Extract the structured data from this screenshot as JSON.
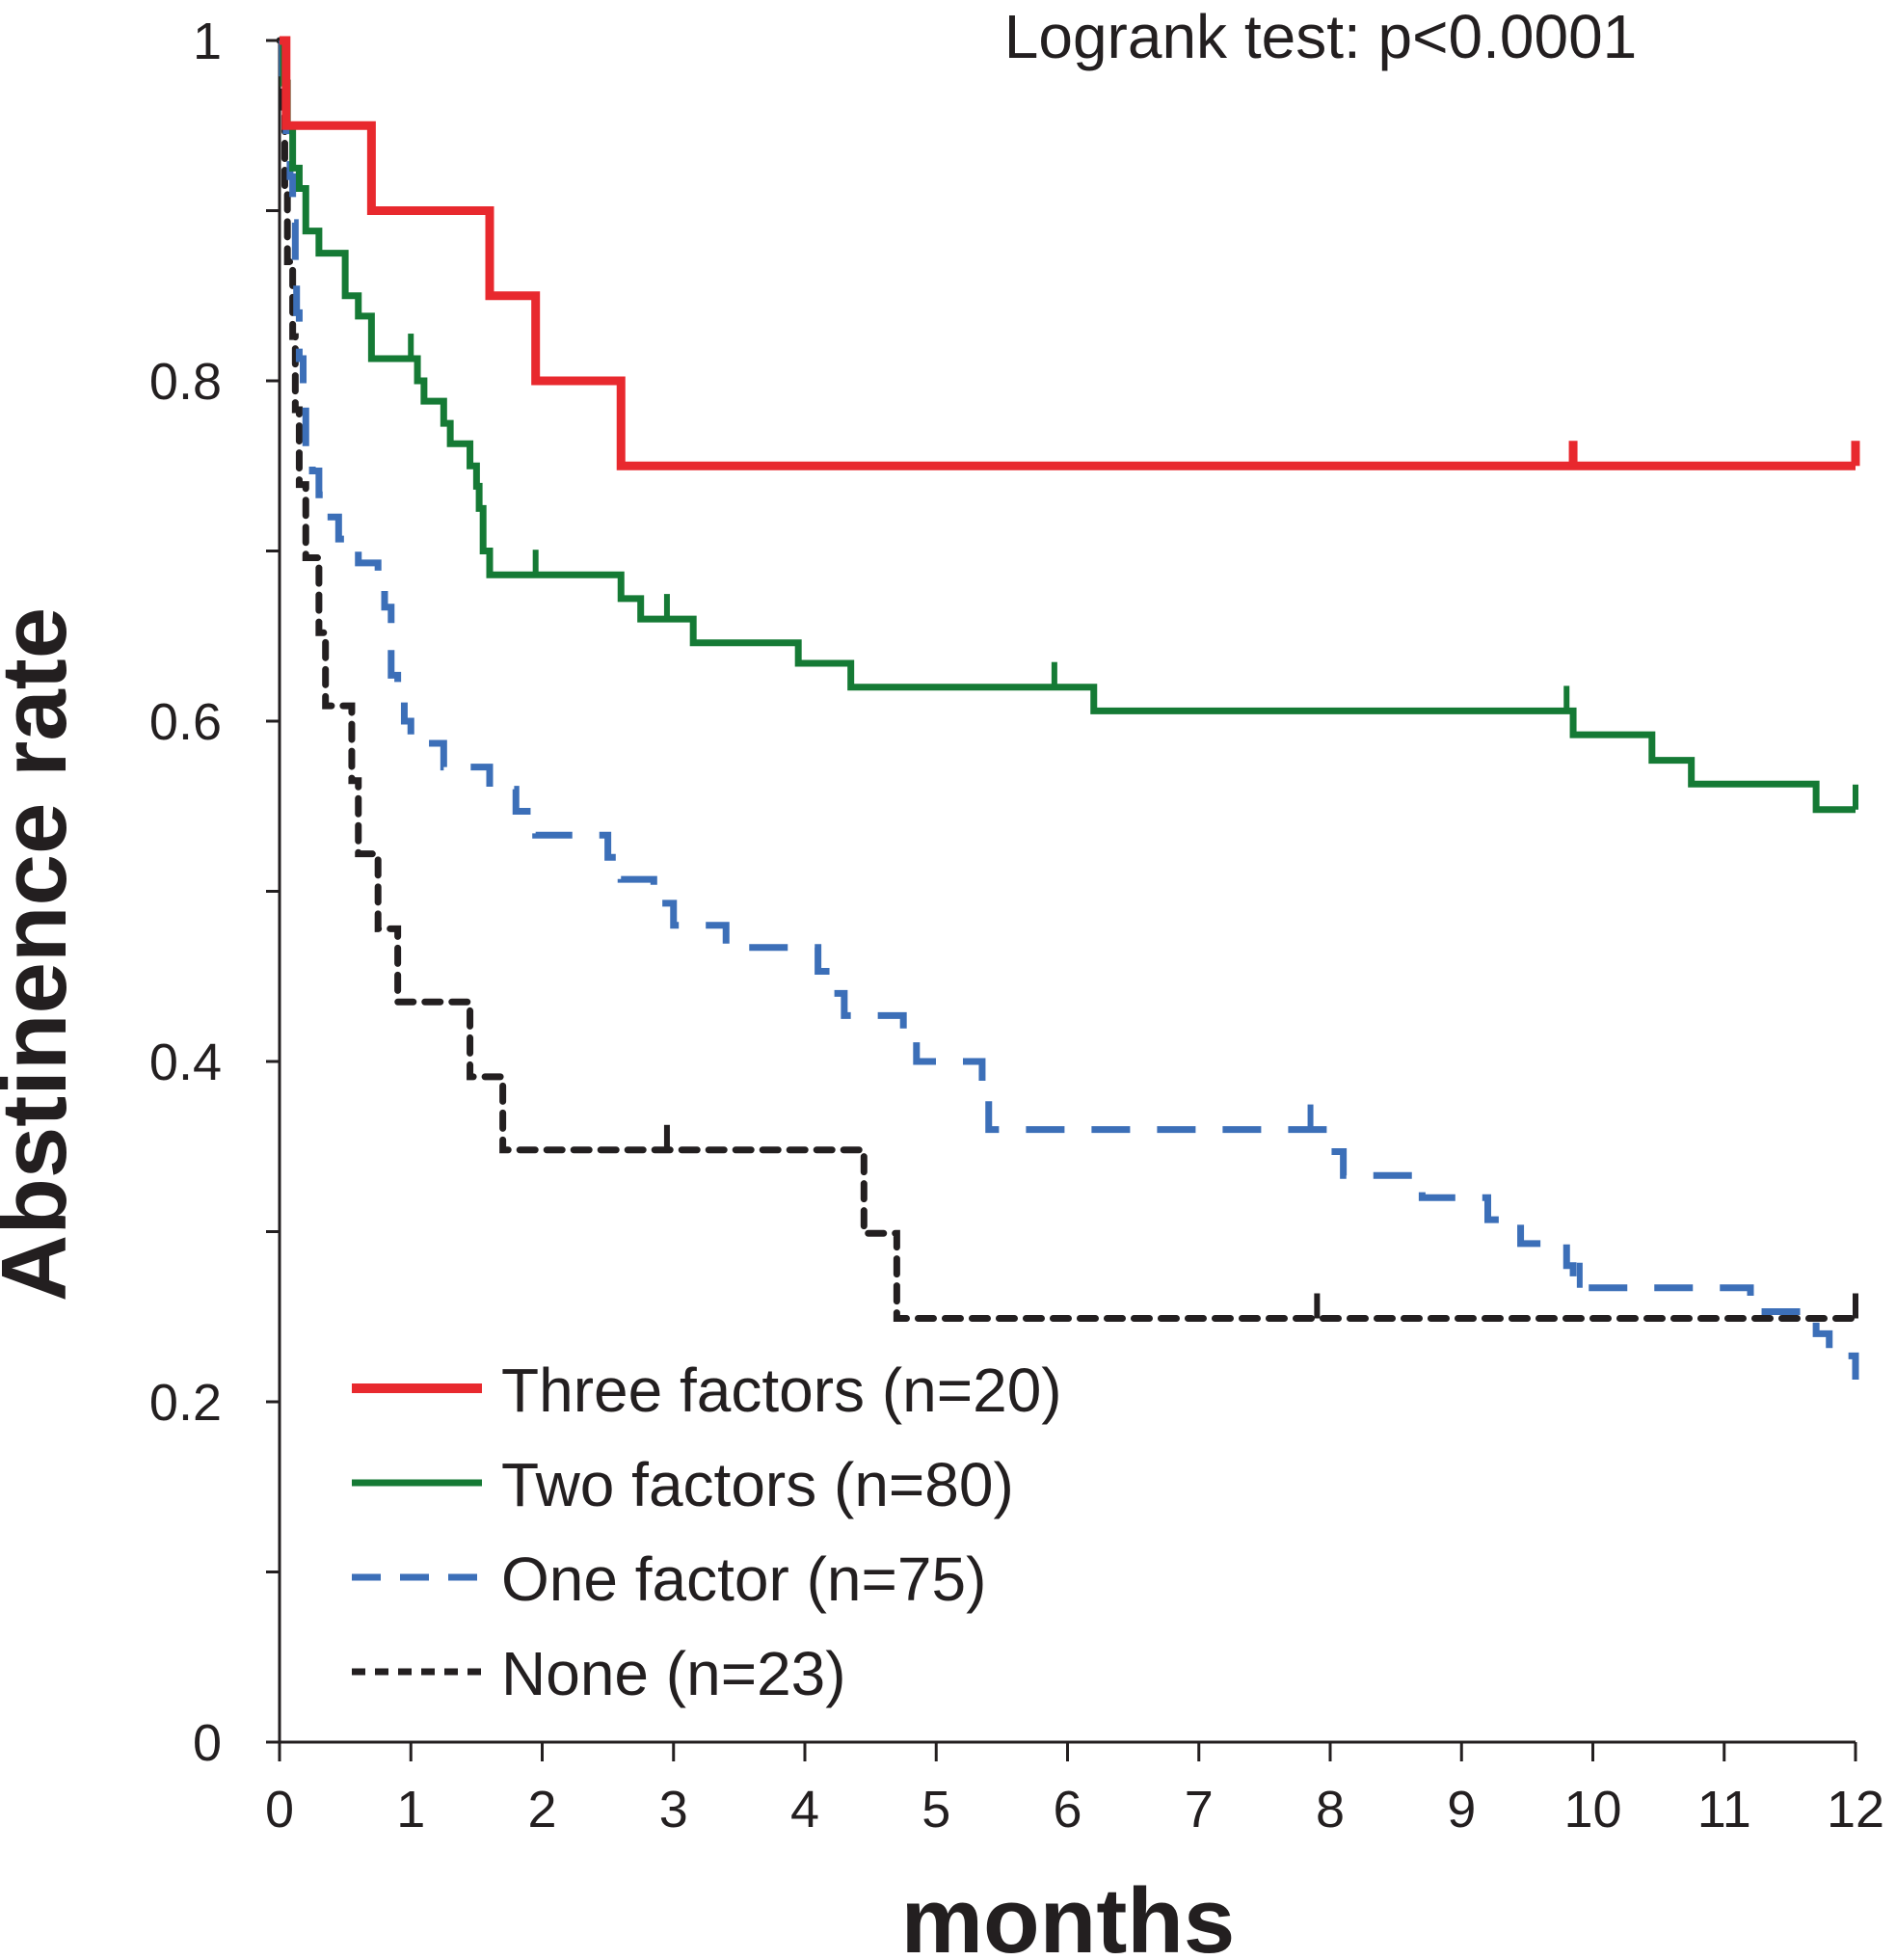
{
  "chart_data": {
    "type": "line",
    "subtype": "kaplan-meier step",
    "title": "",
    "annotation": "Logrank test:  p<0.0001",
    "xlabel": "months",
    "ylabel": "Abstinence rate",
    "xlim": [
      0,
      12
    ],
    "ylim": [
      0,
      1
    ],
    "x_ticks": [
      0,
      1,
      2,
      3,
      4,
      5,
      6,
      7,
      8,
      9,
      10,
      11,
      12
    ],
    "x_tick_labels": [
      "0",
      "1",
      "2",
      "3",
      "4",
      "5",
      "6",
      "7",
      "8",
      "9",
      "10",
      "11",
      "12"
    ],
    "y_ticks": [
      0,
      0.1,
      0.2,
      0.3,
      0.4,
      0.5,
      0.6,
      0.7,
      0.8,
      0.9,
      1.0
    ],
    "y_tick_labels": [
      "0",
      "",
      "0.2",
      "",
      "0.4",
      "",
      "0.6",
      "",
      "0.8",
      "",
      "1"
    ],
    "grid": false,
    "legend_position": "bottom-left",
    "series": [
      {
        "name": "Three factors (n=20)",
        "color": "#e8292e",
        "dash": "solid",
        "steps": [
          [
            0,
            1.0
          ],
          [
            0.05,
            0.95
          ],
          [
            0.7,
            0.9
          ],
          [
            1.6,
            0.85
          ],
          [
            1.95,
            0.8
          ],
          [
            2.6,
            0.75
          ],
          [
            12,
            0.75
          ]
        ],
        "censored": [
          [
            9.85,
            0.75
          ],
          [
            12,
            0.75
          ]
        ]
      },
      {
        "name": "Two factors (n=80)",
        "color": "#157a35",
        "dash": "solid",
        "steps": [
          [
            0,
            1.0
          ],
          [
            0.03,
            0.975
          ],
          [
            0.06,
            0.95
          ],
          [
            0.1,
            0.925
          ],
          [
            0.15,
            0.913
          ],
          [
            0.2,
            0.888
          ],
          [
            0.3,
            0.875
          ],
          [
            0.5,
            0.85
          ],
          [
            0.6,
            0.838
          ],
          [
            0.7,
            0.813
          ],
          [
            1.05,
            0.8
          ],
          [
            1.1,
            0.788
          ],
          [
            1.25,
            0.775
          ],
          [
            1.3,
            0.763
          ],
          [
            1.45,
            0.75
          ],
          [
            1.5,
            0.738
          ],
          [
            1.52,
            0.725
          ],
          [
            1.55,
            0.7
          ],
          [
            1.6,
            0.686
          ],
          [
            2.6,
            0.672
          ],
          [
            2.75,
            0.66
          ],
          [
            3.15,
            0.646
          ],
          [
            3.95,
            0.634
          ],
          [
            4.35,
            0.62
          ],
          [
            6.2,
            0.606
          ],
          [
            9.85,
            0.592
          ],
          [
            10.45,
            0.577
          ],
          [
            10.75,
            0.563
          ],
          [
            11.7,
            0.548
          ],
          [
            12,
            0.548
          ]
        ],
        "censored": [
          [
            1.0,
            0.813
          ],
          [
            1.95,
            0.686
          ],
          [
            2.95,
            0.66
          ],
          [
            5.9,
            0.62
          ],
          [
            9.8,
            0.606
          ],
          [
            12,
            0.548
          ]
        ]
      },
      {
        "name": "One factor (n=75)",
        "color": "#3c6fb8",
        "dash": "dashed",
        "steps": [
          [
            0,
            1.0
          ],
          [
            0.02,
            0.973
          ],
          [
            0.05,
            0.947
          ],
          [
            0.08,
            0.92
          ],
          [
            0.1,
            0.893
          ],
          [
            0.12,
            0.867
          ],
          [
            0.13,
            0.84
          ],
          [
            0.15,
            0.813
          ],
          [
            0.18,
            0.787
          ],
          [
            0.2,
            0.76
          ],
          [
            0.25,
            0.747
          ],
          [
            0.3,
            0.733
          ],
          [
            0.35,
            0.72
          ],
          [
            0.45,
            0.707
          ],
          [
            0.6,
            0.693
          ],
          [
            0.75,
            0.68
          ],
          [
            0.8,
            0.667
          ],
          [
            0.85,
            0.627
          ],
          [
            0.9,
            0.613
          ],
          [
            0.95,
            0.6
          ],
          [
            1.0,
            0.587
          ],
          [
            1.25,
            0.573
          ],
          [
            1.6,
            0.56
          ],
          [
            1.8,
            0.547
          ],
          [
            1.95,
            0.533
          ],
          [
            2.5,
            0.52
          ],
          [
            2.6,
            0.507
          ],
          [
            2.85,
            0.493
          ],
          [
            3.0,
            0.48
          ],
          [
            3.4,
            0.467
          ],
          [
            4.1,
            0.453
          ],
          [
            4.2,
            0.44
          ],
          [
            4.3,
            0.427
          ],
          [
            4.75,
            0.413
          ],
          [
            4.85,
            0.4
          ],
          [
            5.35,
            0.387
          ],
          [
            5.4,
            0.36
          ],
          [
            8.0,
            0.347
          ],
          [
            8.1,
            0.333
          ],
          [
            8.7,
            0.32
          ],
          [
            9.2,
            0.307
          ],
          [
            9.45,
            0.293
          ],
          [
            9.8,
            0.28
          ],
          [
            9.85,
            0.267
          ],
          [
            11.2,
            0.253
          ],
          [
            11.7,
            0.24
          ],
          [
            11.8,
            0.227
          ],
          [
            12,
            0.213
          ]
        ],
        "censored": [
          [
            7.85,
            0.36
          ],
          [
            9.9,
            0.267
          ]
        ]
      },
      {
        "name": "None (n=23)",
        "color": "#231f20",
        "dash": "short-dashed",
        "steps": [
          [
            0,
            1.0
          ],
          [
            0.02,
            0.957
          ],
          [
            0.04,
            0.913
          ],
          [
            0.06,
            0.87
          ],
          [
            0.1,
            0.826
          ],
          [
            0.12,
            0.783
          ],
          [
            0.15,
            0.739
          ],
          [
            0.2,
            0.696
          ],
          [
            0.3,
            0.652
          ],
          [
            0.35,
            0.609
          ],
          [
            0.55,
            0.565
          ],
          [
            0.6,
            0.522
          ],
          [
            0.75,
            0.478
          ],
          [
            0.9,
            0.435
          ],
          [
            1.45,
            0.391
          ],
          [
            1.7,
            0.348
          ],
          [
            4.45,
            0.299
          ],
          [
            4.7,
            0.249
          ],
          [
            12,
            0.249
          ]
        ],
        "censored": [
          [
            2.95,
            0.348
          ],
          [
            7.9,
            0.249
          ],
          [
            12,
            0.249
          ]
        ]
      }
    ]
  }
}
